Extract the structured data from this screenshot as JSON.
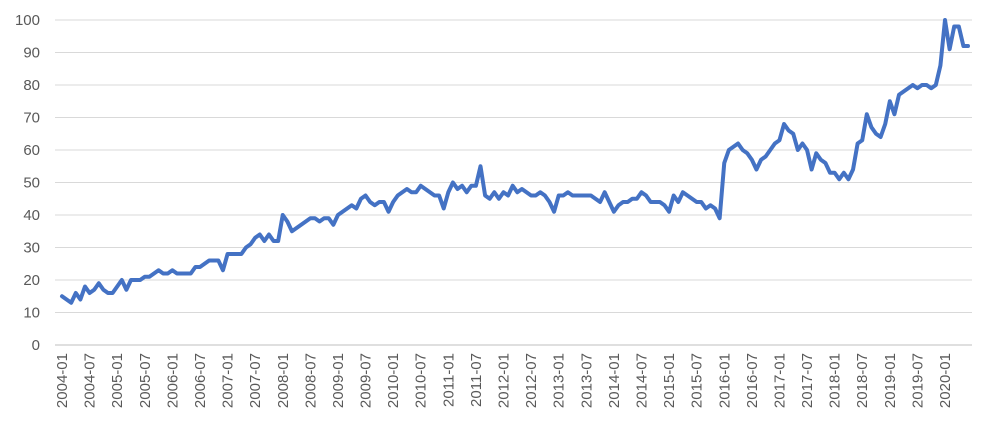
{
  "chart_data": {
    "type": "line",
    "categories": [
      "2004-01",
      null,
      null,
      null,
      null,
      null,
      "2004-07",
      null,
      null,
      null,
      null,
      null,
      "2005-01",
      null,
      null,
      null,
      null,
      null,
      "2005-07",
      null,
      null,
      null,
      null,
      null,
      "2006-01",
      null,
      null,
      null,
      null,
      null,
      "2006-07",
      null,
      null,
      null,
      null,
      null,
      "2007-01",
      null,
      null,
      null,
      null,
      null,
      "2007-07",
      null,
      null,
      null,
      null,
      null,
      "2008-01",
      null,
      null,
      null,
      null,
      null,
      "2008-07",
      null,
      null,
      null,
      null,
      null,
      "2009-01",
      null,
      null,
      null,
      null,
      null,
      "2009-07",
      null,
      null,
      null,
      null,
      null,
      "2010-01",
      null,
      null,
      null,
      null,
      null,
      "2010-07",
      null,
      null,
      null,
      null,
      null,
      "2011-01",
      null,
      null,
      null,
      null,
      null,
      "2011-07",
      null,
      null,
      null,
      null,
      null,
      "2012-01",
      null,
      null,
      null,
      null,
      null,
      "2012-07",
      null,
      null,
      null,
      null,
      null,
      "2013-01",
      null,
      null,
      null,
      null,
      null,
      "2013-07",
      null,
      null,
      null,
      null,
      null,
      "2014-01",
      null,
      null,
      null,
      null,
      null,
      "2014-07",
      null,
      null,
      null,
      null,
      null,
      "2015-01",
      null,
      null,
      null,
      null,
      null,
      "2015-07",
      null,
      null,
      null,
      null,
      null,
      "2016-01",
      null,
      null,
      null,
      null,
      null,
      "2016-07",
      null,
      null,
      null,
      null,
      null,
      "2017-01",
      null,
      null,
      null,
      null,
      null,
      "2017-07",
      null,
      null,
      null,
      null,
      null,
      "2018-01",
      null,
      null,
      null,
      null,
      null,
      "2018-07",
      null,
      null,
      null,
      null,
      null,
      "2019-01",
      null,
      null,
      null,
      null,
      null,
      "2019-07",
      null,
      null,
      null,
      null,
      null,
      "2020-01",
      null,
      null,
      null,
      null,
      null
    ],
    "values": [
      15,
      14,
      13,
      16,
      14,
      18,
      16,
      17,
      19,
      17,
      16,
      16,
      18,
      20,
      17,
      20,
      20,
      20,
      21,
      21,
      22,
      23,
      22,
      22,
      23,
      22,
      22,
      22,
      22,
      24,
      24,
      25,
      26,
      26,
      26,
      23,
      28,
      28,
      28,
      28,
      30,
      31,
      33,
      34,
      32,
      34,
      32,
      32,
      40,
      38,
      35,
      36,
      37,
      38,
      39,
      39,
      38,
      39,
      39,
      37,
      40,
      41,
      42,
      43,
      42,
      45,
      46,
      44,
      43,
      44,
      44,
      41,
      44,
      46,
      47,
      48,
      47,
      47,
      49,
      48,
      47,
      46,
      46,
      42,
      47,
      50,
      48,
      49,
      47,
      49,
      49,
      55,
      46,
      45,
      47,
      45,
      47,
      46,
      49,
      47,
      48,
      47,
      46,
      46,
      47,
      46,
      44,
      41,
      46,
      46,
      47,
      46,
      46,
      46,
      46,
      46,
      45,
      44,
      47,
      44,
      41,
      43,
      44,
      44,
      45,
      45,
      47,
      46,
      44,
      44,
      44,
      43,
      41,
      46,
      44,
      47,
      46,
      45,
      44,
      44,
      42,
      43,
      42,
      39,
      56,
      60,
      61,
      62,
      60,
      59,
      57,
      54,
      57,
      58,
      60,
      62,
      63,
      68,
      66,
      65,
      60,
      62,
      60,
      54,
      59,
      57,
      56,
      53,
      53,
      51,
      53,
      51,
      54,
      62,
      63,
      71,
      67,
      65,
      64,
      68,
      75,
      71,
      77,
      78,
      79,
      80,
      79,
      80,
      80,
      79,
      80,
      86,
      100,
      91,
      98,
      98,
      92,
      92
    ],
    "color": "#4472c4",
    "ylim": [
      0,
      100
    ],
    "yticks": [
      0,
      10,
      20,
      30,
      40,
      50,
      60,
      70,
      80,
      90,
      100
    ],
    "grid": true
  }
}
